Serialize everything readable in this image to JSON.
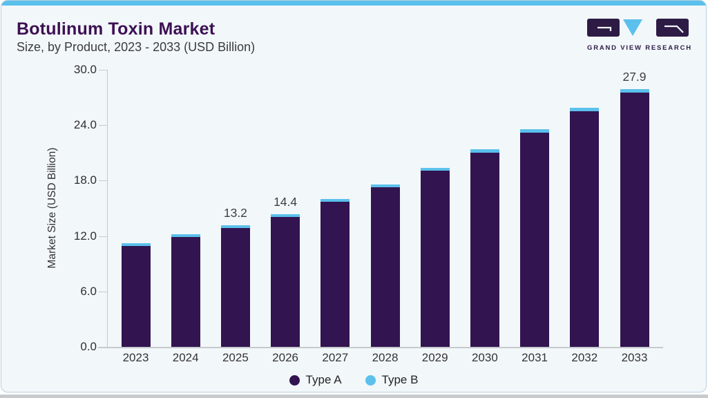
{
  "header": {
    "title": "Botulinum Toxin Market",
    "subtitle": "Size, by Product, 2023 - 2033 (USD Billion)"
  },
  "logo": {
    "caption": "GRAND VIEW RESEARCH"
  },
  "chart_data": {
    "type": "bar",
    "stacked": true,
    "title": "Botulinum Toxin Market",
    "subtitle": "Size, by Product, 2023 - 2033 (USD Billion)",
    "categories": [
      "2023",
      "2024",
      "2025",
      "2026",
      "2027",
      "2028",
      "2029",
      "2030",
      "2031",
      "2032",
      "2033"
    ],
    "series": [
      {
        "name": "Type A",
        "color": "#321450",
        "values": [
          10.9,
          11.9,
          12.9,
          14.1,
          15.7,
          17.25,
          19.05,
          21.05,
          23.2,
          25.5,
          27.5
        ]
      },
      {
        "name": "Type B",
        "color": "#5bc0ec",
        "values": [
          0.3,
          0.3,
          0.3,
          0.3,
          0.3,
          0.35,
          0.35,
          0.35,
          0.4,
          0.4,
          0.4
        ]
      }
    ],
    "totals": [
      11.2,
      12.2,
      13.2,
      14.4,
      16.0,
      17.6,
      19.4,
      21.4,
      23.6,
      25.9,
      27.9
    ],
    "value_labels": [
      {
        "index": 2,
        "text": "13.2"
      },
      {
        "index": 3,
        "text": "14.4"
      },
      {
        "index": 10,
        "text": "27.9"
      }
    ],
    "ylabel": "Market Size (USD Billion)",
    "ylim": [
      0,
      30
    ],
    "yticks": [
      "0.0",
      "6.0",
      "12.0",
      "18.0",
      "24.0",
      "30.0"
    ],
    "grid": false,
    "legend_position": "bottom"
  },
  "colors": {
    "accent_blue": "#5bc0ec",
    "type_a": "#321450",
    "type_b": "#5bc0ec",
    "card_background": "#f2f7fa",
    "title_text": "#3c1053",
    "logo_purple": "#2d1a45"
  }
}
